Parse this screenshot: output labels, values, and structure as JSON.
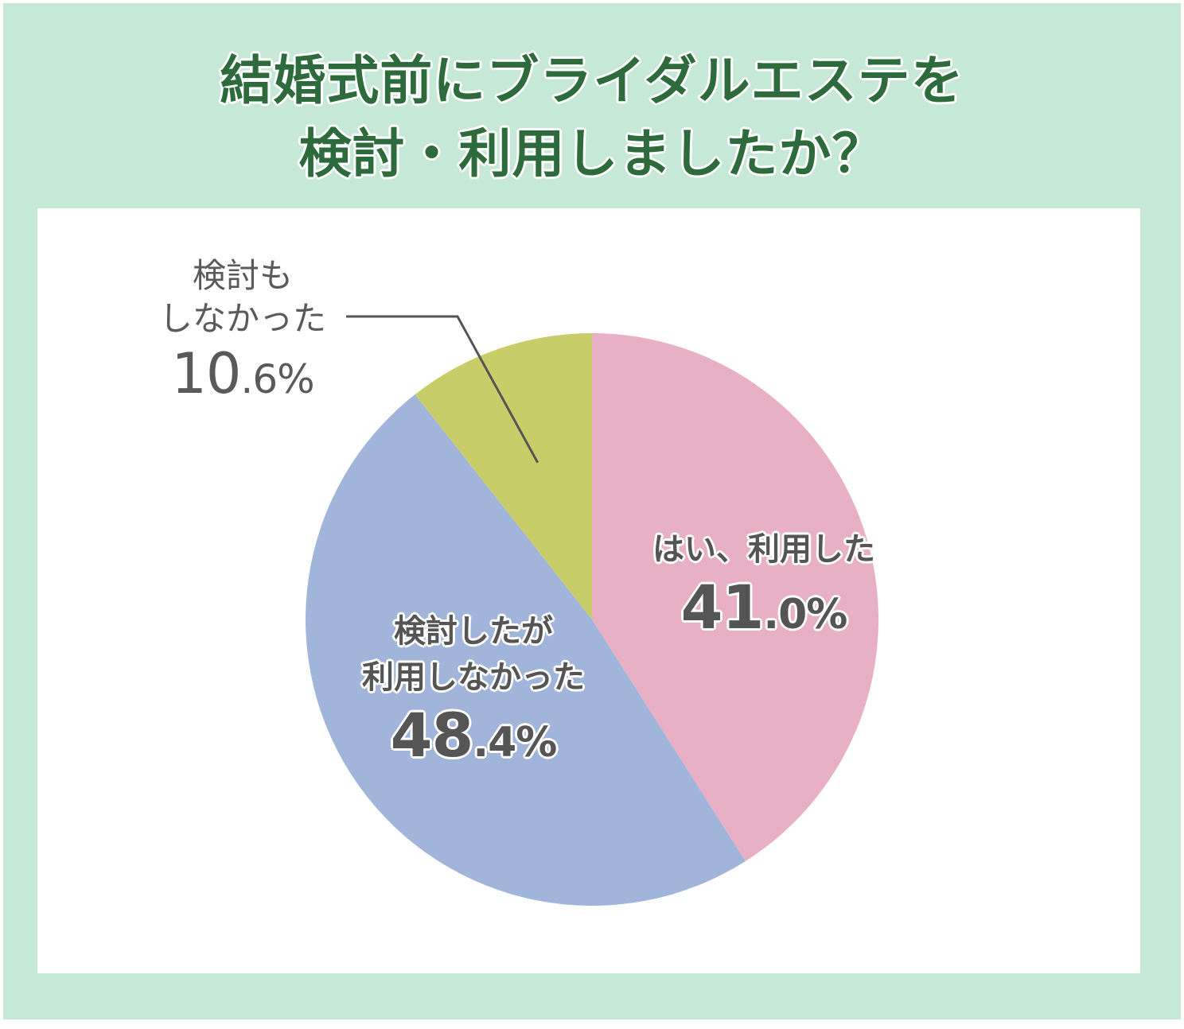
{
  "title": {
    "line1": "結婚式前にブライダルエステを",
    "line2": "検討・利用しましたか？"
  },
  "colors": {
    "background": "#c6e8d6",
    "title": "#2e6b3c",
    "panel": "#ffffff",
    "label_text": "#555555"
  },
  "chart_data": {
    "type": "pie",
    "title": "結婚式前にブライダルエステを検討・利用しましたか？",
    "unit": "%",
    "start_angle_deg": 0,
    "direction": "clockwise",
    "slices": [
      {
        "label_lines": [
          "はい、利用した"
        ],
        "value": 41.0,
        "pct_int": "41",
        "pct_dec": ".0%",
        "color": "#e8b0c4"
      },
      {
        "label_lines": [
          "検討したが",
          "利用しなかった"
        ],
        "value": 48.4,
        "pct_int": "48",
        "pct_dec": ".4%",
        "color": "#a1b5da"
      },
      {
        "label_lines": [
          "検討も",
          "しなかった"
        ],
        "value": 10.6,
        "pct_int": "10",
        "pct_dec": ".6%",
        "color": "#c8cd6a"
      }
    ]
  }
}
